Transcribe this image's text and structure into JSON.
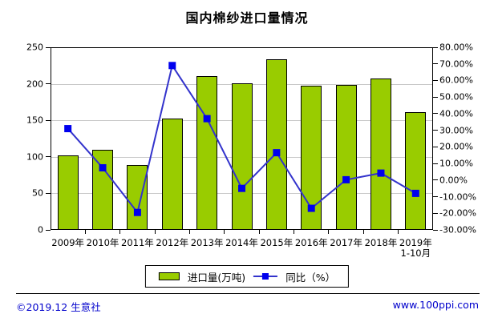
{
  "title": "国内棉纱进口量情况",
  "chart_data": {
    "type": "bar",
    "subtype": "combo-bar-line-dual-axis",
    "categories": [
      {
        "label": "2009年"
      },
      {
        "label": "2010年"
      },
      {
        "label": "2011年"
      },
      {
        "label": "2012年"
      },
      {
        "label": "2013年"
      },
      {
        "label": "2014年"
      },
      {
        "label": "2015年"
      },
      {
        "label": "2016年"
      },
      {
        "label": "2017年"
      },
      {
        "label": "2018年"
      },
      {
        "label": "2019年",
        "sublabel": "1-10月"
      }
    ],
    "series": [
      {
        "name": "进口量(万吨)",
        "type": "bar",
        "axis": "left",
        "color": "#99cc00",
        "border_color": "#000000",
        "values": [
          102,
          110,
          89,
          152,
          210,
          201,
          234,
          197,
          198,
          207,
          161
        ]
      },
      {
        "name": "同比（%）",
        "type": "line",
        "axis": "right",
        "color": "#3333cc",
        "marker_color": "#0000ee",
        "values": [
          31,
          7.4,
          -19.5,
          69,
          37,
          -5,
          16.5,
          -17,
          0.2,
          4.2,
          -8
        ]
      }
    ],
    "left_axis": {
      "min": 0,
      "max": 250,
      "step": 50,
      "tick_labels": [
        "0",
        "50",
        "100",
        "150",
        "200",
        "250"
      ]
    },
    "right_axis": {
      "min": -30,
      "max": 80,
      "step": 10,
      "tick_labels": [
        "-30.00%",
        "-20.00%",
        "-10.00%",
        "0.00%",
        "10.00%",
        "20.00%",
        "30.00%",
        "40.00%",
        "50.00%",
        "60.00%",
        "70.00%",
        "80.00%"
      ]
    },
    "grid": "horizontal",
    "grid_color": "#c9c9c9",
    "legend_position": "bottom"
  },
  "footer": {
    "left": "©2019.12 生意社",
    "right": "www.100ppi.com",
    "color": "#0000cc"
  }
}
